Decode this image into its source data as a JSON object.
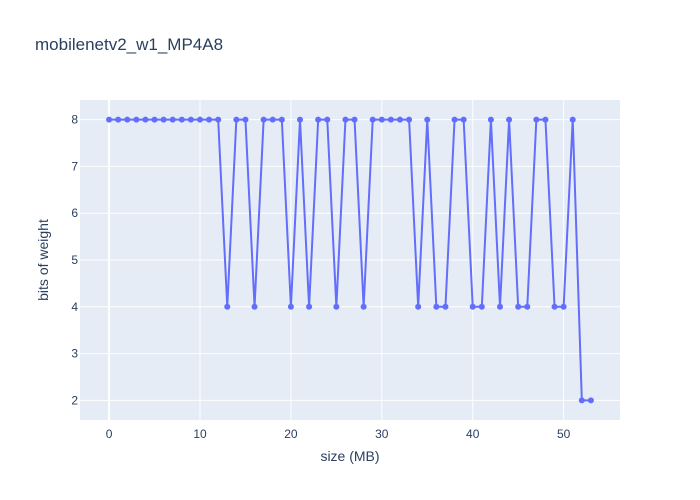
{
  "chart_data": {
    "type": "line",
    "title": "mobilenetv2_w1_MP4A8",
    "xlabel": "size (MB)",
    "ylabel": "bits of weight",
    "xlim": [
      -3.2,
      56.2
    ],
    "ylim": [
      1.58,
      8.42
    ],
    "x_ticks": [
      0,
      10,
      20,
      30,
      40,
      50
    ],
    "y_ticks": [
      2,
      3,
      4,
      5,
      6,
      7,
      8
    ],
    "grid": true,
    "markers": true,
    "series": [
      {
        "color": "#636efa",
        "x": [
          0,
          1,
          2,
          3,
          4,
          5,
          6,
          7,
          8,
          9,
          10,
          11,
          12,
          13,
          14,
          15,
          16,
          17,
          18,
          19,
          20,
          21,
          22,
          23,
          24,
          25,
          26,
          27,
          28,
          29,
          30,
          31,
          32,
          33,
          34,
          35,
          36,
          37,
          38,
          39,
          40,
          41,
          42,
          43,
          44,
          45,
          46,
          47,
          48,
          49,
          50,
          51,
          52,
          53
        ],
        "y": [
          8,
          8,
          8,
          8,
          8,
          8,
          8,
          8,
          8,
          8,
          8,
          8,
          8,
          4,
          8,
          8,
          4,
          8,
          8,
          8,
          4,
          8,
          4,
          8,
          8,
          4,
          8,
          8,
          4,
          8,
          8,
          8,
          8,
          8,
          4,
          8,
          4,
          4,
          8,
          8,
          4,
          4,
          8,
          4,
          8,
          4,
          4,
          8,
          8,
          4,
          4,
          8,
          2,
          2
        ]
      }
    ]
  }
}
